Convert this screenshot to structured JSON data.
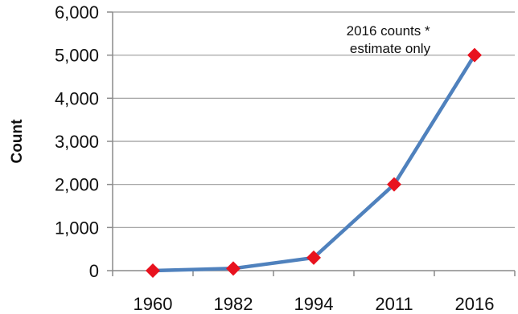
{
  "chart_data": {
    "type": "line",
    "title": "",
    "xlabel": "",
    "ylabel": "Count",
    "categories": [
      "1960",
      "1982",
      "1994",
      "2011",
      "2016"
    ],
    "values": [
      0,
      50,
      300,
      2000,
      5000
    ],
    "ylim": [
      0,
      6000
    ],
    "yticks": [
      "0",
      "1,000",
      "2,000",
      "3,000",
      "4,000",
      "5,000",
      "6,000"
    ],
    "grid": true,
    "legend": "none",
    "annotation_lines": [
      "2016 counts *",
      "estimate only"
    ],
    "colors": {
      "line": "#4f81bd",
      "marker": "#e8121e",
      "grid": "#9a9a9a"
    }
  }
}
